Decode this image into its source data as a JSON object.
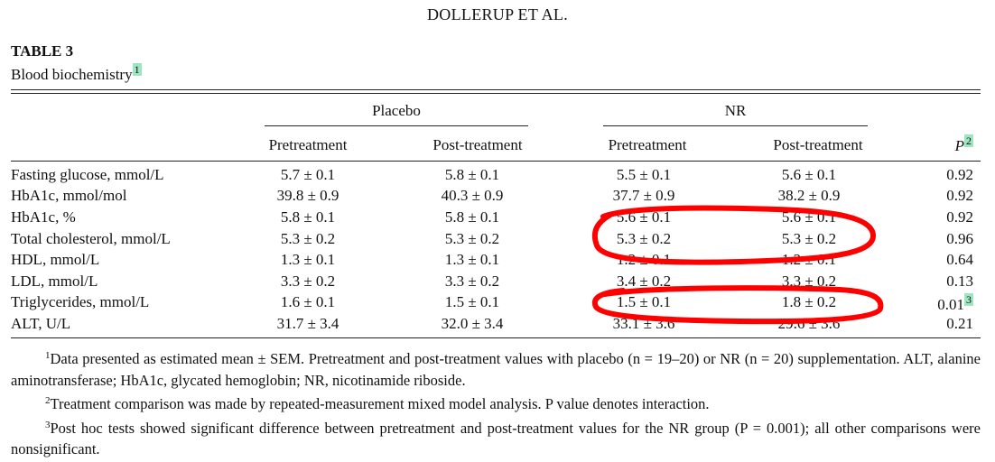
{
  "running_head": "DOLLERUP ET AL.",
  "table": {
    "label": "TABLE 3",
    "caption": "Blood biochemistry",
    "caption_note_mark": "1",
    "groups": [
      "Placebo",
      "NR"
    ],
    "columns": [
      "Pretreatment",
      "Post-treatment",
      "Pretreatment",
      "Post-treatment"
    ],
    "p_header": "P",
    "p_header_note_mark": "2",
    "rows": [
      {
        "label": "Fasting glucose, mmol/L",
        "values": [
          "5.7 ± 0.1",
          "5.8 ± 0.1",
          "5.5 ± 0.1",
          "5.6 ± 0.1"
        ],
        "p": "0.92"
      },
      {
        "label": "HbA1c, mmol/mol",
        "values": [
          "39.8 ± 0.9",
          "40.3 ± 0.9",
          "37.7 ± 0.9",
          "38.2 ± 0.9"
        ],
        "p": "0.92"
      },
      {
        "label": "HbA1c, %",
        "values": [
          "5.8 ± 0.1",
          "5.8 ± 0.1",
          "5.6 ± 0.1",
          "5.6 ± 0.1"
        ],
        "p": "0.92"
      },
      {
        "label": "Total cholesterol, mmol/L",
        "values": [
          "5.3 ± 0.2",
          "5.3 ± 0.2",
          "5.3 ± 0.2",
          "5.3 ± 0.2"
        ],
        "p": "0.96"
      },
      {
        "label": "HDL, mmol/L",
        "values": [
          "1.3 ± 0.1",
          "1.3 ± 0.1",
          "1.2 ± 0.1",
          "1.2 ± 0.1"
        ],
        "p": "0.64"
      },
      {
        "label": "LDL, mmol/L",
        "values": [
          "3.3 ± 0.2",
          "3.3 ± 0.2",
          "3.4 ± 0.2",
          "3.3 ± 0.2"
        ],
        "p": "0.13"
      },
      {
        "label": "Triglycerides, mmol/L",
        "values": [
          "1.6 ± 0.1",
          "1.5 ± 0.1",
          "1.5 ± 0.1",
          "1.8 ± 0.2"
        ],
        "p": "0.01",
        "p_note_mark": "3"
      },
      {
        "label": "ALT, U/L",
        "values": [
          "31.7 ± 3.4",
          "32.0 ± 3.4",
          "33.1 ± 3.6",
          "29.6 ± 3.6"
        ],
        "p": "0.21"
      }
    ]
  },
  "footnotes": [
    {
      "mark": "1",
      "text": "Data presented as estimated mean ± SEM. Pretreatment and post-treatment values with placebo (n = 19–20) or NR (n = 20) supplementation. ALT, alanine aminotransferase; HbA1c, glycated hemoglobin; NR, nicotinamide riboside."
    },
    {
      "mark": "2",
      "text": "Treatment comparison was made by repeated-measurement mixed model analysis. P value denotes interaction."
    },
    {
      "mark": "3",
      "text": "Post hoc tests showed significant difference between pretreatment and post-treatment values for the NR group (P = 0.001); all other comparisons were nonsignificant."
    }
  ],
  "colors": {
    "highlight": "#9ee6c2",
    "annotation": "#ff0000",
    "text": "#111111"
  }
}
